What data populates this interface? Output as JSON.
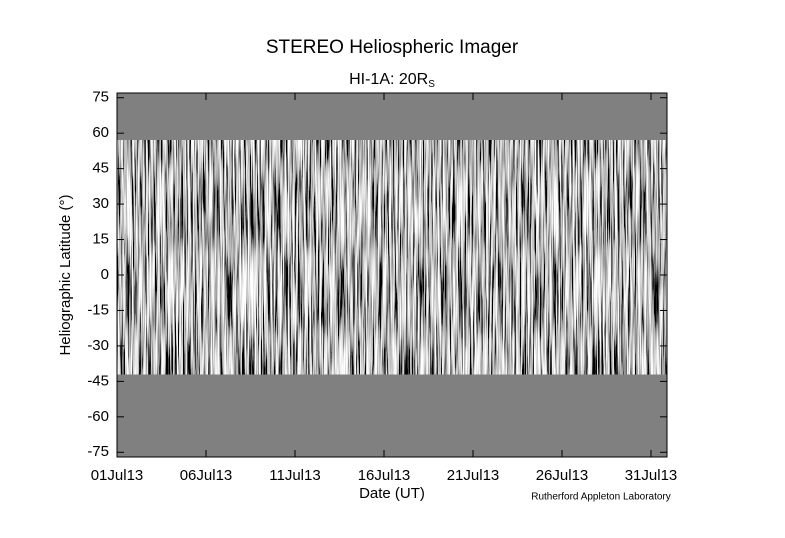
{
  "chart_data": {
    "type": "image",
    "title": "STEREO Heliospheric Imager",
    "subtitle": "HI-1A: 20R",
    "subtitle_subscript": "S",
    "xlabel": "Date (UT)",
    "ylabel": "Heliographic Latitude (°)",
    "credit": "Rutherford Appleton Laboratory",
    "xlim": [
      1,
      31.9
    ],
    "xticks": [
      {
        "value": 1,
        "label": "01Jul13"
      },
      {
        "value": 6,
        "label": "06Jul13"
      },
      {
        "value": 11,
        "label": "11Jul13"
      },
      {
        "value": 16,
        "label": "16Jul13"
      },
      {
        "value": 21,
        "label": "21Jul13"
      },
      {
        "value": 26,
        "label": "26Jul13"
      },
      {
        "value": 31,
        "label": "31Jul13"
      }
    ],
    "ylim": [
      -77,
      77
    ],
    "yticks": [
      75,
      60,
      45,
      30,
      15,
      0,
      -15,
      -30,
      -45,
      -60,
      -75
    ],
    "image_latitude_range": [
      -42,
      57
    ],
    "background_color": "#808080"
  }
}
